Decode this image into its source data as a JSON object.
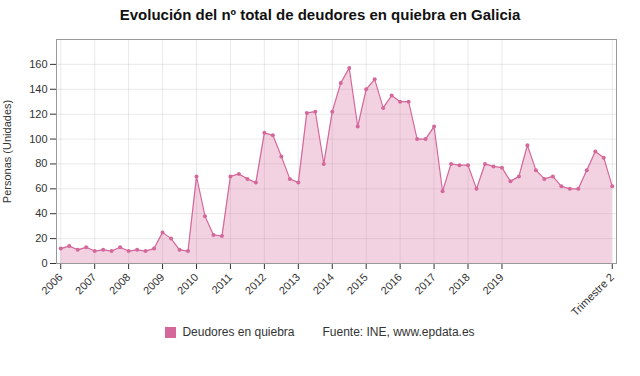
{
  "chart_data": {
    "type": "area",
    "title": "Evolución del nº total de deudores en quiebra en Galicia",
    "ylabel": "Personas (Unidades)",
    "annotations": [
      "Fuente: INE, www.epdata.es"
    ],
    "categories": [
      "2006",
      null,
      null,
      null,
      "2007",
      null,
      null,
      null,
      "2008",
      null,
      null,
      null,
      "2009",
      null,
      null,
      null,
      "2010",
      null,
      null,
      null,
      "2011",
      null,
      null,
      null,
      "2012",
      null,
      null,
      null,
      "2013",
      null,
      null,
      null,
      "2014",
      null,
      null,
      null,
      "2015",
      null,
      null,
      null,
      "2016",
      null,
      null,
      null,
      "2017",
      null,
      null,
      null,
      "2018",
      null,
      null,
      null,
      "2019",
      null,
      null,
      null,
      null,
      null,
      null,
      null,
      null,
      null,
      null,
      null,
      null,
      "Trimestre 2"
    ],
    "series": [
      {
        "name": "Deudores en quiebra",
        "color": "#d4689a",
        "marker": "circle",
        "values": [
          12,
          14,
          11,
          13,
          10,
          11,
          10,
          13,
          10,
          11,
          10,
          12,
          25,
          20,
          11,
          10,
          70,
          38,
          23,
          22,
          70,
          72,
          68,
          65,
          105,
          103,
          86,
          68,
          65,
          121,
          122,
          80,
          122,
          145,
          157,
          110,
          140,
          148,
          125,
          135,
          130,
          130,
          100,
          100,
          110,
          58,
          80,
          79,
          79,
          60,
          80,
          78,
          77,
          66,
          70,
          95,
          75,
          68,
          70,
          62,
          60,
          60,
          75,
          90,
          85,
          62
        ]
      }
    ],
    "ylim": [
      0,
      180
    ],
    "yticks": [
      0,
      20,
      40,
      60,
      80,
      100,
      120,
      140,
      160
    ],
    "grid": true
  }
}
